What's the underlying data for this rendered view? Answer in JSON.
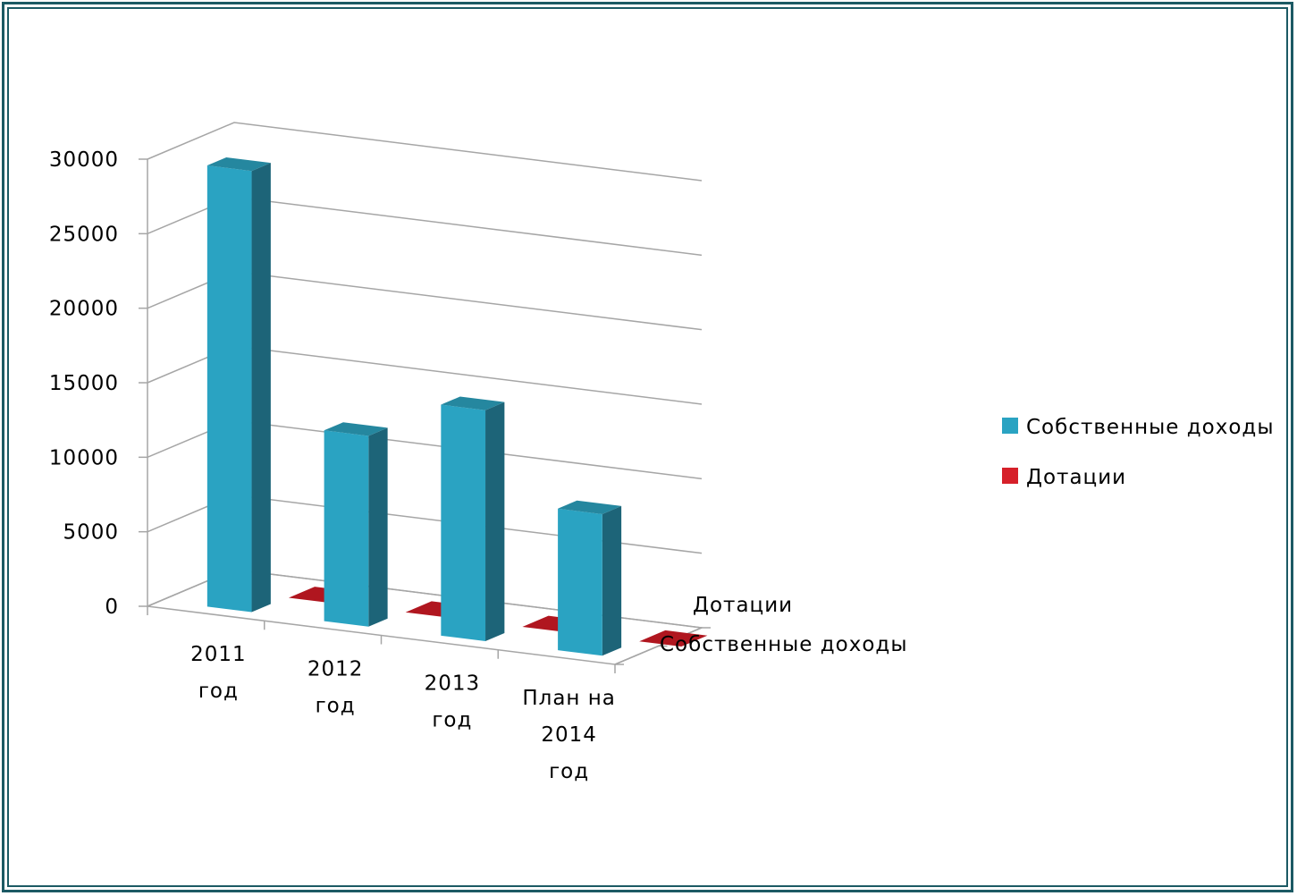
{
  "chart_data": {
    "type": "bar",
    "categories": [
      "2011 год",
      "2012 год",
      "2013 год",
      "План на 2014 год"
    ],
    "category_lines": [
      [
        "2011",
        "год"
      ],
      [
        "2012",
        "год"
      ],
      [
        "2013",
        "год"
      ],
      [
        "План на",
        "2014",
        "год"
      ]
    ],
    "series": [
      {
        "name": "Собственные доходы",
        "values": [
          29600,
          12800,
          15500,
          9500
        ],
        "color": "#2aa3c2"
      },
      {
        "name": "Дотации",
        "values": [
          0,
          0,
          0,
          0
        ],
        "color": "#d6202a"
      }
    ],
    "depth_labels": [
      "Дотации",
      "Собственные доходы"
    ],
    "yticks": [
      "0",
      "5000",
      "10000",
      "15000",
      "20000",
      "25000",
      "30000"
    ],
    "ylim": [
      0,
      30000
    ],
    "legend_position": "right",
    "grid": true,
    "style": "3d-column"
  }
}
